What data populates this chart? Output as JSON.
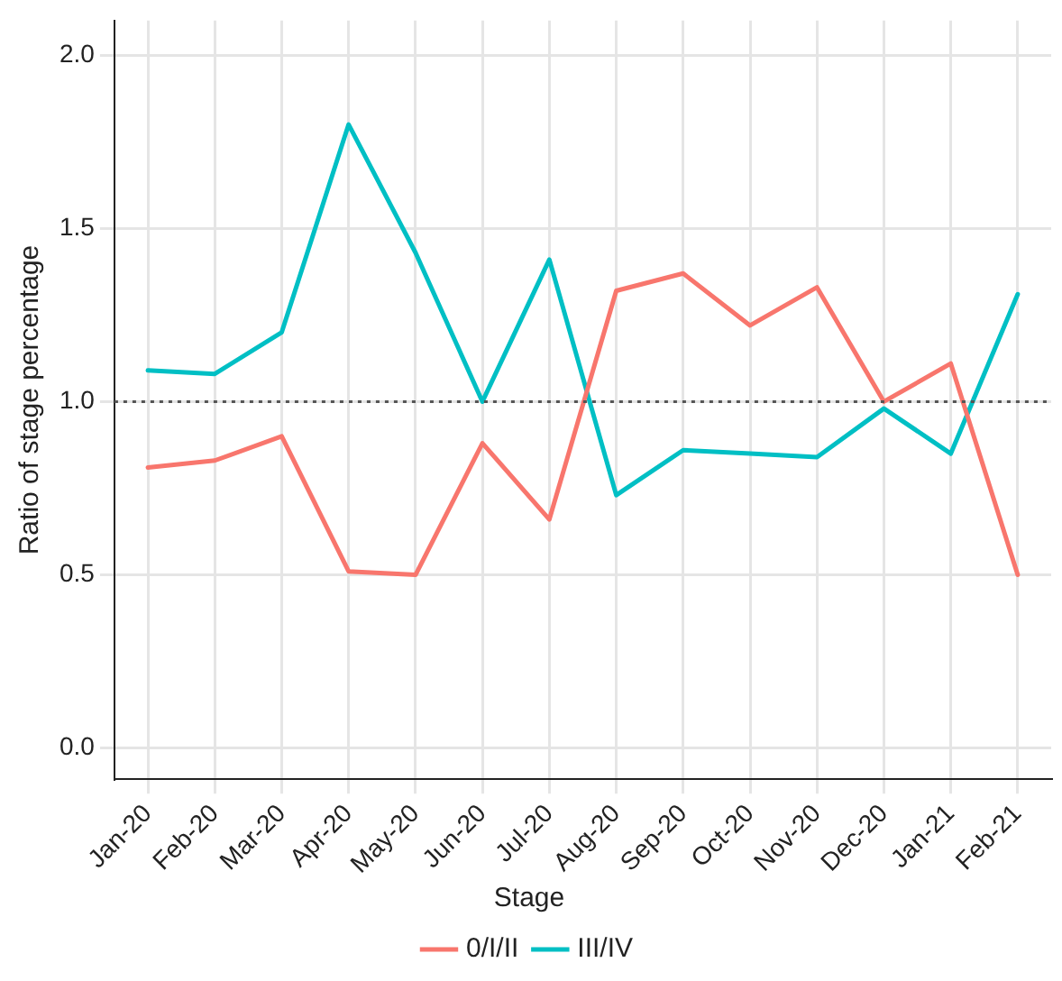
{
  "chart_data": {
    "type": "line",
    "ylabel": "Ratio of stage percentage",
    "legend_title": "Stage",
    "legend": "bottom",
    "grid": true,
    "marker": "none",
    "line_style": "solid",
    "categories": [
      "Jan-20",
      "Feb-20",
      "Mar-20",
      "Apr-20",
      "May-20",
      "Jun-20",
      "Jul-20",
      "Aug-20",
      "Sep-20",
      "Oct-20",
      "Nov-20",
      "Dec-20",
      "Jan-21",
      "Feb-21"
    ],
    "ylim": [
      -0.09,
      2.1
    ],
    "yticks": [
      {
        "value": 0,
        "label": "0.0"
      },
      {
        "value": 0.5,
        "label": "0.5"
      },
      {
        "value": 1,
        "label": "1.0"
      },
      {
        "value": 1.5,
        "label": "1.5"
      },
      {
        "value": 2,
        "label": "2.0"
      }
    ],
    "ref_lines": [
      {
        "axis": "y",
        "value": 1,
        "color": "#555555",
        "line_style": "dotted"
      }
    ],
    "series": [
      {
        "name": "0/I/II",
        "color": "#f8766d",
        "values": [
          0.81,
          0.83,
          0.9,
          0.51,
          0.5,
          0.88,
          0.66,
          1.32,
          1.37,
          1.22,
          1.33,
          1.0,
          1.11,
          0.5
        ]
      },
      {
        "name": "III/IV",
        "color": "#00bfc4",
        "values": [
          1.09,
          1.08,
          1.2,
          1.8,
          1.43,
          1.0,
          1.41,
          0.73,
          0.86,
          0.85,
          0.84,
          0.98,
          0.85,
          1.31
        ]
      }
    ]
  }
}
